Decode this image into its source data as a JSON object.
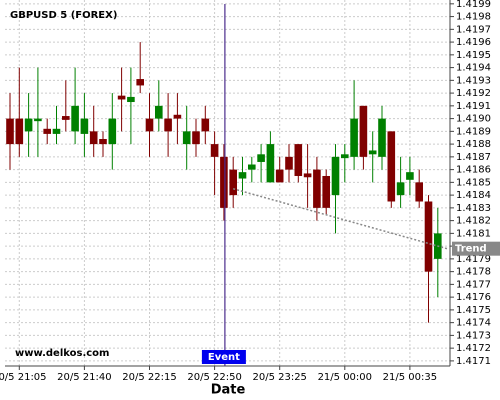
{
  "chart_data": {
    "type": "candlestick",
    "title": "GBPUSD 5 (FOREX)",
    "watermark": "www.delkos.com",
    "x_label": "Date",
    "categories": [
      null,
      "20/5 21:05",
      null,
      null,
      null,
      null,
      null,
      null,
      "20/5 21:40",
      null,
      null,
      null,
      null,
      null,
      null,
      "20/5 22:15",
      null,
      null,
      null,
      null,
      null,
      null,
      "20/5 22:50",
      null,
      null,
      null,
      null,
      null,
      null,
      "20/5 23:25",
      null,
      null,
      null,
      null,
      null,
      null,
      "21/5 00:00",
      null,
      null,
      null,
      null,
      null,
      null,
      "21/5 00:35",
      null,
      null,
      null
    ],
    "open": [
      1.419,
      1.419,
      1.4189,
      1.41898,
      1.41892,
      1.41888,
      1.41902,
      1.4189,
      1.41888,
      1.4189,
      1.41884,
      1.4188,
      1.41918,
      1.41913,
      1.41931,
      1.419,
      1.419,
      1.419,
      1.41903,
      1.4188,
      1.4189,
      1.419,
      1.4188,
      1.4187,
      1.4186,
      1.41853,
      1.4186,
      1.41866,
      1.4185,
      1.4186,
      1.4187,
      1.4188,
      1.41857,
      1.4186,
      1.41855,
      1.4184,
      1.41869,
      1.4187,
      1.4191,
      1.41872,
      1.4187,
      1.4189,
      1.4184,
      1.41852,
      1.4185,
      1.41835,
      1.4179
    ],
    "high": [
      1.4192,
      1.4194,
      1.4192,
      1.4194,
      1.419,
      1.4191,
      1.4193,
      1.4194,
      1.4192,
      1.4191,
      1.4189,
      1.4192,
      1.4194,
      1.4194,
      1.4196,
      1.4192,
      1.4193,
      1.4192,
      1.4192,
      1.4191,
      1.419,
      1.4191,
      1.4189,
      1.4188,
      1.4187,
      1.4187,
      1.4187,
      1.4188,
      1.4189,
      1.4187,
      1.4188,
      1.4188,
      1.4188,
      1.4187,
      1.4186,
      1.4188,
      1.4188,
      1.4193,
      1.4191,
      1.4189,
      1.4191,
      1.4189,
      1.4187,
      1.4187,
      1.4186,
      1.4184,
      1.4183
    ],
    "low": [
      1.4186,
      1.4187,
      1.4187,
      1.4187,
      1.4188,
      1.4188,
      1.4189,
      1.4188,
      1.4187,
      1.4187,
      1.4187,
      1.4186,
      1.4189,
      1.4188,
      1.4192,
      1.4187,
      1.4189,
      1.4187,
      1.4188,
      1.4186,
      1.4187,
      1.4188,
      1.4184,
      1.4182,
      1.4183,
      1.4184,
      1.4185,
      1.4185,
      1.4185,
      1.4185,
      1.4185,
      1.4185,
      1.4183,
      1.4182,
      1.41825,
      1.4181,
      1.4185,
      1.4186,
      1.4186,
      1.4185,
      1.4186,
      1.4183,
      1.4183,
      1.4184,
      1.4183,
      1.4174,
      1.4176
    ],
    "close": [
      1.4188,
      1.4188,
      1.419,
      1.419,
      1.41888,
      1.41892,
      1.41899,
      1.4191,
      1.419,
      1.4188,
      1.4188,
      1.419,
      1.41915,
      1.41917,
      1.41926,
      1.4189,
      1.4191,
      1.4189,
      1.419,
      1.4189,
      1.4188,
      1.4189,
      1.4187,
      1.4183,
      1.4184,
      1.41858,
      1.41864,
      1.41872,
      1.4188,
      1.4185,
      1.4186,
      1.41855,
      1.41854,
      1.4183,
      1.4183,
      1.4187,
      1.41872,
      1.419,
      1.4187,
      1.41875,
      1.419,
      1.41835,
      1.4185,
      1.41858,
      1.41835,
      1.4178,
      1.4181
    ],
    "up_color": "#008000",
    "down_color": "#800000",
    "ylim": [
      1.41706,
      1.41993
    ],
    "yticks": [
      1.4171,
      1.4172,
      1.4173,
      1.4174,
      1.4175,
      1.4176,
      1.4177,
      1.4178,
      1.4179,
      {
        "value": 1.418,
        "label": "1.4180"
      },
      1.4181,
      1.4182,
      1.4183,
      1.4184,
      1.4185,
      1.4186,
      1.4187,
      1.4188,
      1.4189,
      {
        "value": 1.419,
        "label": "1.4190"
      },
      1.4191,
      1.4192,
      1.4193,
      1.4194,
      1.4195,
      1.4196,
      1.4197,
      1.4198,
      1.4199
    ],
    "grid": true,
    "event": {
      "label": "Event",
      "index": 23,
      "color": "#4b2c8c"
    },
    "trend": {
      "label": "Trend",
      "start": [
        24,
        1.41845
      ],
      "end": [
        47,
        1.41798
      ],
      "color": "#888888"
    }
  }
}
